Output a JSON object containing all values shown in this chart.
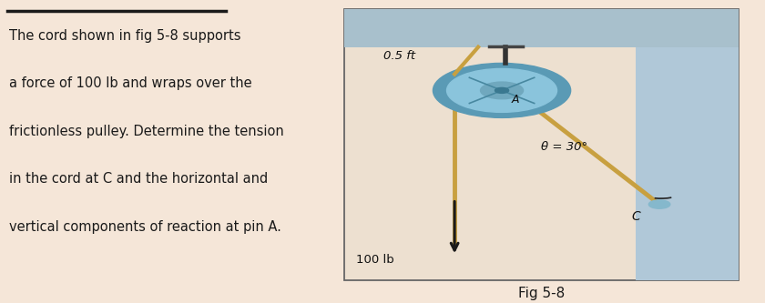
{
  "bg_color": "#f5e6d8",
  "title_line_color": "#1a1a1a",
  "text_color": "#1a1a1a",
  "fig_label": "Fig 5-8",
  "text_lines": [
    "The cord shown in fig 5-8 supports",
    "a force of 100 lb and wraps over the",
    "frictionless pulley. Determine the tension",
    "in the cord at C and the horizontal and",
    "vertical components of reaction at pin A."
  ],
  "label_05ft": "0.5 ft",
  "label_theta": "θ = 30°",
  "label_C": "C",
  "label_A": "A",
  "label_100lb": "100 lb",
  "wall_color": "#b0c8d8",
  "ceiling_color": "#a8c0cc",
  "cord_color": "#c8a040",
  "pulley_outer_color": "#5a9ab5",
  "pulley_mid_color": "#8ac4dc",
  "pulley_hub_color": "#70a8be",
  "pulley_dot_color": "#3a7890",
  "arrow_color": "#1a1a1a",
  "box_bg": "#ede0d0",
  "text_fontsize": 10.5,
  "fig_label_fontsize": 11
}
